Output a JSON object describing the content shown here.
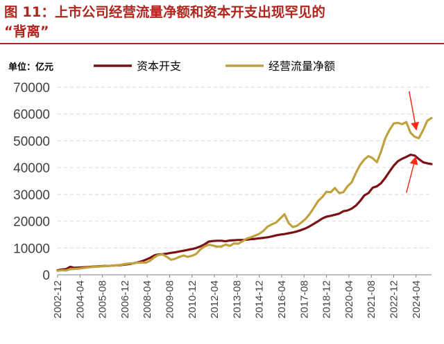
{
  "title": {
    "line1": "图  11：上市公司经营流量净额和资本开支出现罕见的",
    "line2": "“背离”"
  },
  "chart_data": {
    "type": "line",
    "unit_label": "单位：亿元",
    "ylim": [
      0,
      70000
    ],
    "yticks": [
      0,
      10000,
      20000,
      30000,
      40000,
      50000,
      60000,
      70000
    ],
    "grid": true,
    "legend_position": "top",
    "x_tick_labels": [
      "2002-12",
      "2004-04",
      "2005-08",
      "2006-12",
      "2008-04",
      "2009-08",
      "2010-12",
      "2012-04",
      "2013-08",
      "2014-12",
      "2016-04",
      "2017-08",
      "2018-12",
      "2020-04",
      "2021-08",
      "2022-12",
      "2024-04"
    ],
    "x": [
      "2002-12",
      "2003-03",
      "2003-06",
      "2003-09",
      "2003-12",
      "2004-03",
      "2004-06",
      "2004-09",
      "2004-12",
      "2005-03",
      "2005-06",
      "2005-09",
      "2005-12",
      "2006-03",
      "2006-06",
      "2006-09",
      "2006-12",
      "2007-03",
      "2007-06",
      "2007-09",
      "2007-12",
      "2008-03",
      "2008-06",
      "2008-09",
      "2008-12",
      "2009-03",
      "2009-06",
      "2009-09",
      "2009-12",
      "2010-03",
      "2010-06",
      "2010-09",
      "2010-12",
      "2011-03",
      "2011-06",
      "2011-09",
      "2011-12",
      "2012-03",
      "2012-06",
      "2012-09",
      "2012-12",
      "2013-03",
      "2013-06",
      "2013-09",
      "2013-12",
      "2014-03",
      "2014-06",
      "2014-09",
      "2014-12",
      "2015-03",
      "2015-06",
      "2015-09",
      "2015-12",
      "2016-03",
      "2016-06",
      "2016-09",
      "2016-12",
      "2017-03",
      "2017-06",
      "2017-09",
      "2017-12",
      "2018-03",
      "2018-06",
      "2018-09",
      "2018-12",
      "2019-03",
      "2019-06",
      "2019-09",
      "2019-12",
      "2020-03",
      "2020-06",
      "2020-09",
      "2020-12",
      "2021-03",
      "2021-06",
      "2021-09",
      "2021-12",
      "2022-03",
      "2022-06",
      "2022-09",
      "2022-12",
      "2023-03",
      "2023-06",
      "2023-09",
      "2023-12",
      "2024-03",
      "2024-06",
      "2024-09",
      "2024-12",
      "2025-03"
    ],
    "series": [
      {
        "name": "资本开支",
        "color": "#7b1113",
        "values": [
          1700,
          2000,
          2100,
          3000,
          2600,
          2700,
          2800,
          2900,
          3000,
          3100,
          3200,
          3300,
          3300,
          3400,
          3500,
          3600,
          3800,
          4000,
          4300,
          4600,
          5000,
          5600,
          6300,
          7200,
          7600,
          7700,
          7900,
          8200,
          8400,
          8700,
          9000,
          9300,
          9600,
          10000,
          10600,
          11400,
          12400,
          12600,
          12700,
          12700,
          12500,
          12800,
          12900,
          13000,
          13000,
          13100,
          13300,
          13400,
          13600,
          13800,
          14000,
          14300,
          14700,
          15000,
          15200,
          15500,
          15800,
          16200,
          16700,
          17300,
          18100,
          19000,
          20000,
          21000,
          21700,
          22000,
          22400,
          22800,
          23700,
          24000,
          24700,
          25800,
          27500,
          29600,
          30500,
          32500,
          33000,
          34200,
          36200,
          38500,
          40700,
          42400,
          43300,
          44000,
          44800,
          44500,
          43200,
          42000,
          41600,
          41300
        ]
      },
      {
        "name": "经营流量净额",
        "color": "#bfa23b",
        "values": [
          1500,
          1700,
          1600,
          2100,
          2200,
          2300,
          2500,
          2700,
          2900,
          3000,
          3100,
          3200,
          3300,
          3400,
          3500,
          3700,
          4000,
          4200,
          4300,
          4500,
          4600,
          4500,
          5200,
          6500,
          7400,
          7600,
          6700,
          5600,
          6000,
          6700,
          7200,
          6700,
          7100,
          7800,
          9500,
          10600,
          11200,
          10900,
          10500,
          10600,
          11300,
          10800,
          11700,
          11600,
          12500,
          13500,
          14000,
          14600,
          15300,
          16400,
          18000,
          18800,
          19500,
          21000,
          22600,
          19300,
          17800,
          18300,
          19500,
          20800,
          22700,
          25000,
          27500,
          29000,
          31000,
          30800,
          32400,
          30500,
          30800,
          33000,
          34500,
          38000,
          41000,
          43000,
          44300,
          43500,
          42000,
          46000,
          51000,
          54000,
          56500,
          56700,
          56200,
          57000,
          53000,
          51500,
          51000,
          54000,
          57500,
          58500
        ]
      }
    ],
    "annotations": [
      {
        "type": "arrow",
        "color": "#ff2a1a",
        "points_to": "经营流量净额 2024 peak"
      },
      {
        "type": "arrow",
        "color": "#ff2a1a",
        "points_to": "资本开支 2024 peak"
      }
    ]
  }
}
